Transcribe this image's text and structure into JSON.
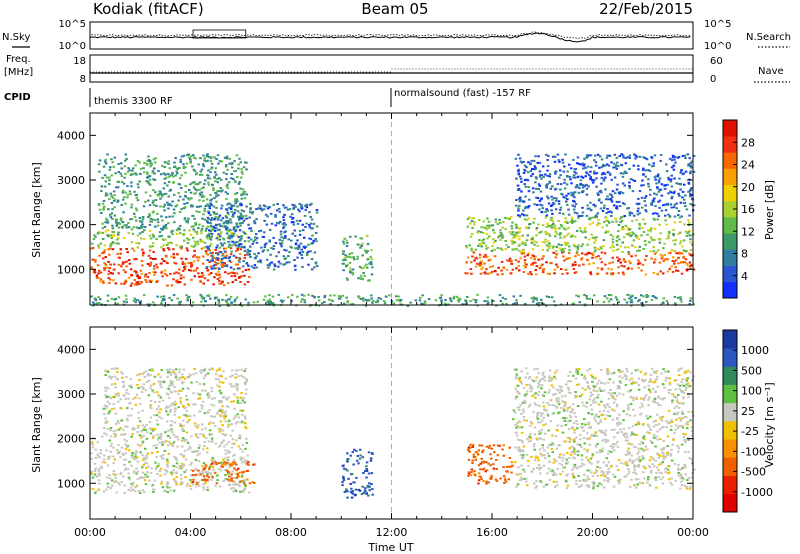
{
  "header": {
    "radar": "Kodiak (fitACF)",
    "beam": "Beam 05",
    "date": "22/Feb/2015"
  },
  "summary_panels": {
    "nsky": {
      "label": "N.Sky",
      "ticks": [
        "10^5",
        "10^0"
      ],
      "right_label": "N.Search",
      "right_ticks": [
        "10^5",
        "10^0"
      ]
    },
    "freq": {
      "label": "Freq.",
      "unit": "[MHz]",
      "ticks": [
        "18",
        "8"
      ],
      "right_label": "Nave",
      "right_ticks": [
        "60",
        "0"
      ]
    },
    "cpid": {
      "label": "CPID",
      "modes": [
        {
          "text": "themis 3300 RF",
          "start_hour": 0,
          "end_hour": 12
        },
        {
          "text": "normalsound (fast) -157 RF",
          "start_hour": 12,
          "end_hour": 24
        }
      ]
    }
  },
  "chart_data": [
    {
      "type": "heatmap",
      "name": "power",
      "ylabel": "Slant Range [km]",
      "xlim": [
        0,
        24
      ],
      "ylim": [
        200,
        4500
      ],
      "yticks": [
        1000,
        2000,
        3000,
        4000
      ],
      "colorbar": {
        "label": "Power [dB]",
        "range": [
          0,
          32
        ],
        "ticks": [
          4,
          8,
          12,
          16,
          20,
          24,
          28
        ],
        "colors": [
          "#1030ff",
          "#2a56d0",
          "#2f7ea0",
          "#3a9a6a",
          "#5fba48",
          "#a8d030",
          "#f0d000",
          "#f8a000",
          "#f86800",
          "#f03010",
          "#e01000"
        ]
      },
      "regions": [
        {
          "t": [
            0.0,
            6.3
          ],
          "r": [
            650,
            1500
          ],
          "level": 0.88
        },
        {
          "t": [
            0.0,
            6.3
          ],
          "r": [
            1500,
            1900
          ],
          "level": 0.45
        },
        {
          "t": [
            0.3,
            6.2
          ],
          "r": [
            1900,
            3600
          ],
          "level": 0.3
        },
        {
          "t": [
            4.6,
            9.0
          ],
          "r": [
            1000,
            2500
          ],
          "level": 0.15
        },
        {
          "t": [
            10.0,
            11.2
          ],
          "r": [
            700,
            1800
          ],
          "level": 0.35
        },
        {
          "t": [
            14.9,
            24.0
          ],
          "r": [
            900,
            1400
          ],
          "level": 0.85
        },
        {
          "t": [
            14.9,
            24.0
          ],
          "r": [
            1400,
            2200
          ],
          "level": 0.45
        },
        {
          "t": [
            16.9,
            24.0
          ],
          "r": [
            2200,
            3600
          ],
          "level": 0.12
        },
        {
          "t": [
            0.0,
            24.0
          ],
          "r": [
            200,
            450
          ],
          "level": 0.3
        }
      ]
    },
    {
      "type": "heatmap",
      "name": "velocity",
      "ylabel": "Slant Range [km]",
      "xlabel": "Time UT",
      "xlim": [
        0,
        24
      ],
      "ylim": [
        200,
        4500
      ],
      "yticks": [
        1000,
        2000,
        3000,
        4000
      ],
      "xticks": [
        "00:00",
        "04:00",
        "08:00",
        "12:00",
        "16:00",
        "20:00",
        "00:00"
      ],
      "colorbar": {
        "label": "Velocity [m s⁻¹]",
        "ticks": [
          "1000",
          "500",
          "100",
          "25",
          "-25",
          "-100",
          "-500",
          "-1000"
        ],
        "colors": [
          "#1a3aa0",
          "#2a58c0",
          "#2e8a5a",
          "#5ec040",
          "#c8c8c0",
          "#f0c000",
          "#f89000",
          "#f06000",
          "#e82000",
          "#e00000"
        ]
      },
      "regions": [
        {
          "t": [
            0.0,
            6.3
          ],
          "r": [
            800,
            2100
          ],
          "v": 0
        },
        {
          "t": [
            0.5,
            6.2
          ],
          "r": [
            2100,
            3600
          ],
          "v": 0
        },
        {
          "t": [
            4.0,
            6.5
          ],
          "r": [
            1000,
            1500
          ],
          "v": -200
        },
        {
          "t": [
            10.0,
            11.2
          ],
          "r": [
            700,
            1800
          ],
          "v": 700
        },
        {
          "t": [
            15.0,
            16.8
          ],
          "r": [
            1000,
            1900
          ],
          "v": -300
        },
        {
          "t": [
            16.8,
            24.0
          ],
          "r": [
            900,
            1700
          ],
          "v": 0
        },
        {
          "t": [
            16.8,
            24.0
          ],
          "r": [
            1700,
            3600
          ],
          "v": 0
        }
      ]
    }
  ]
}
